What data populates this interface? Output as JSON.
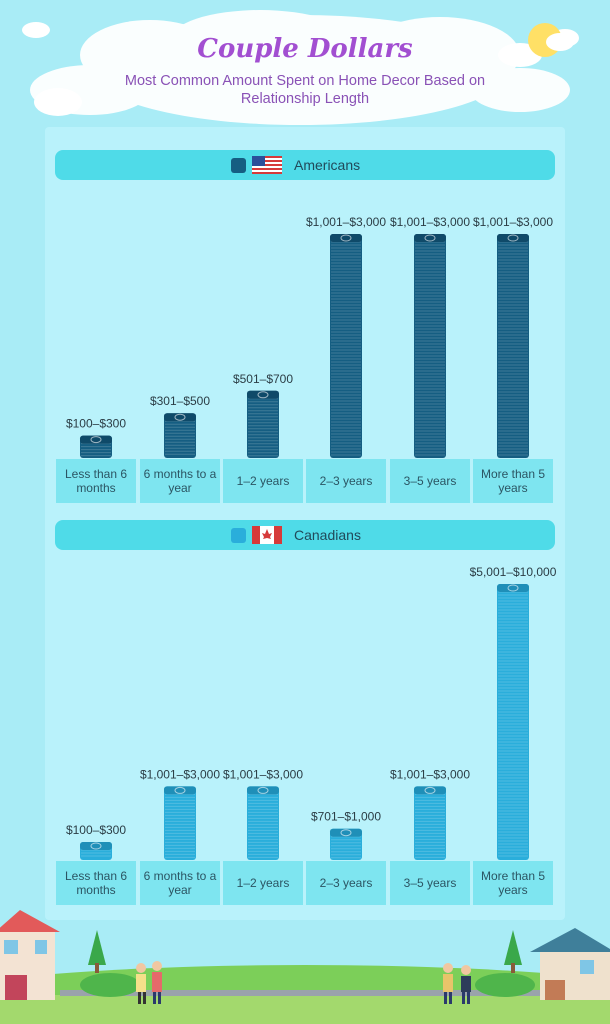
{
  "header": {
    "title": "Couple Dollars",
    "subtitle": "Most Common Amount Spent on Home Decor Based on Relationship Length"
  },
  "colors": {
    "americans": "#155e82",
    "canadians": "#2aaedb",
    "background": "#a9ecf6",
    "panel": "#b9f2fb",
    "header": "#4fdbe8",
    "category": "#7ee5f0"
  },
  "chart_data": [
    {
      "type": "bar",
      "title": "Americans",
      "icon": "us-flag-icon",
      "categories": [
        "Less than 6 months",
        "6 months to a year",
        "1–2 years",
        "2–3 years",
        "3–5 years",
        "More than 5 years"
      ],
      "values": [
        200,
        400,
        600,
        2000,
        2000,
        2000
      ],
      "data_labels": [
        "$100–$300",
        "$301–$500",
        "$501–$700",
        "$1,001–$3,000",
        "$1,001–$3,000",
        "$1,001–$3,000"
      ],
      "ylim": [
        0,
        2000
      ]
    },
    {
      "type": "bar",
      "title": "Canadians",
      "icon": "canada-flag-icon",
      "categories": [
        "Less than 6 months",
        "6 months to a year",
        "1–2 years",
        "2–3 years",
        "3–5 years",
        "More than 5 years"
      ],
      "values": [
        200,
        2000,
        2000,
        850,
        2000,
        7500
      ],
      "data_labels": [
        "$100–$300",
        "$1,001–$3,000",
        "$1,001–$3,000",
        "$701–$1,000",
        "$1,001–$3,000",
        "$5,001–$10,000"
      ],
      "ylim": [
        0,
        7500
      ]
    }
  ]
}
